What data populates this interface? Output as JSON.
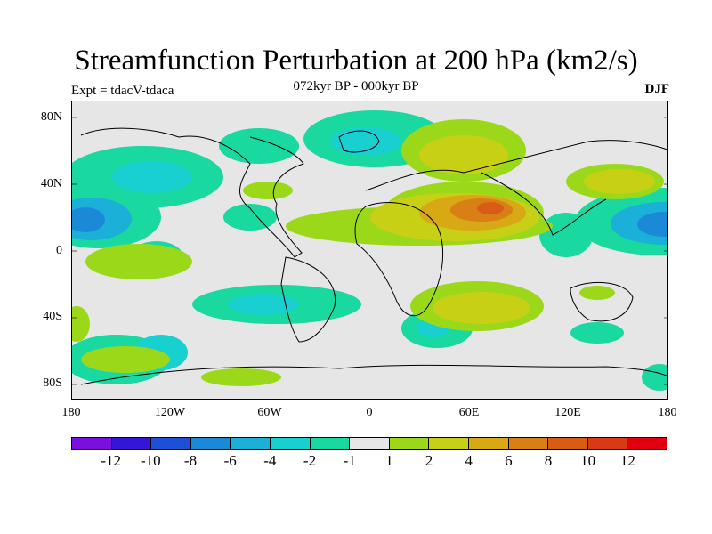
{
  "title": "Streamfunction Perturbation at 200 hPa (km2/s)",
  "subtitle": "072kyr BP - 000kyr BP",
  "left_label": "Expt = tdacV-tdaca",
  "right_label": "DJF",
  "lat_labels": [
    "80N",
    "40N",
    "0",
    "40S",
    "80S"
  ],
  "lon_labels": [
    "180",
    "120W",
    "60W",
    "0",
    "60E",
    "120E",
    "180"
  ],
  "colorbar": {
    "colors": [
      "#7a0fe0",
      "#3416d6",
      "#1e4fd8",
      "#1a8ad8",
      "#1ab0d8",
      "#19d0d0",
      "#19d8a0",
      "#e6e6e6",
      "#9cd81a",
      "#c8d015",
      "#d8a815",
      "#d88015",
      "#d85c15",
      "#d83a15",
      "#e00010"
    ],
    "labels": [
      "-12",
      "-10",
      "-8",
      "-6",
      "-4",
      "-2",
      "-1",
      "1",
      "2",
      "4",
      "6",
      "8",
      "10",
      "12"
    ]
  }
}
